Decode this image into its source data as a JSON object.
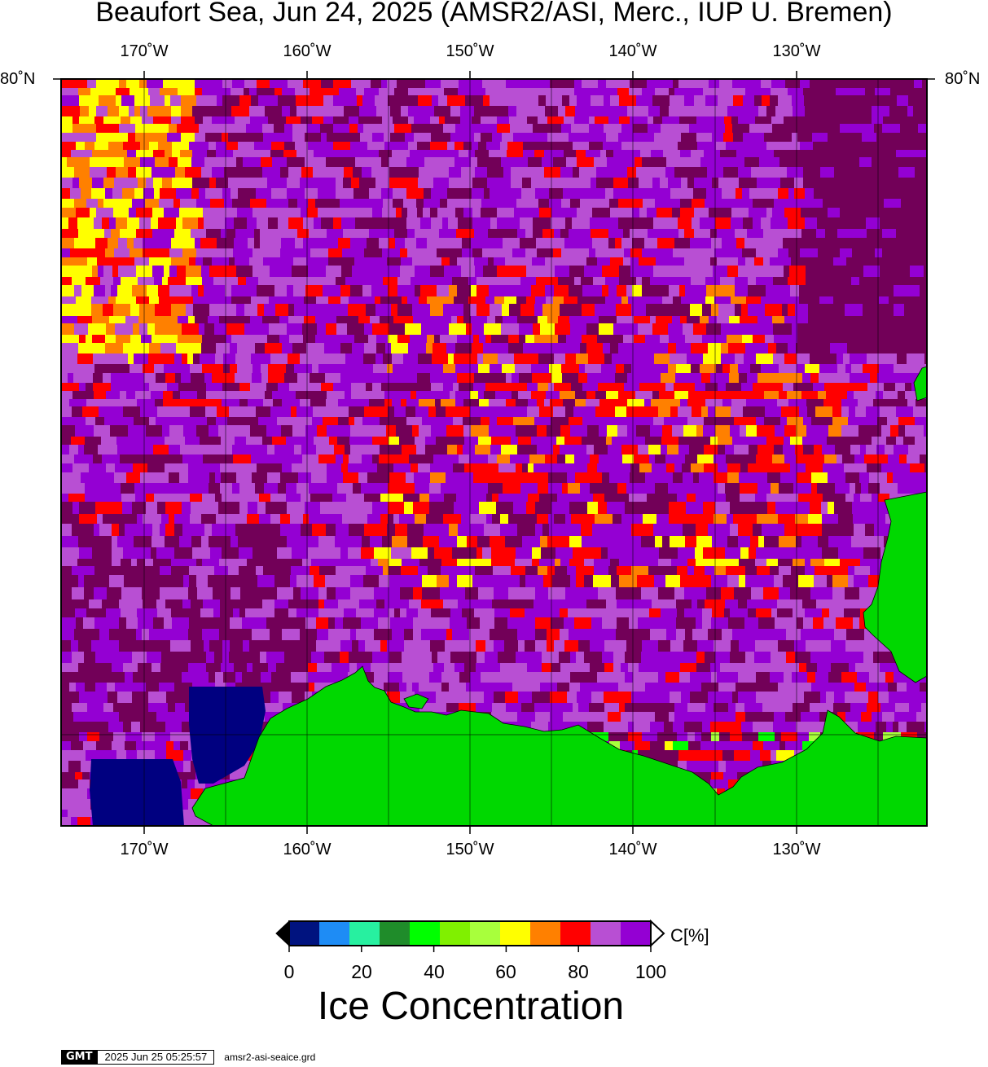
{
  "title": "Beaufort Sea, Jun 24, 2025 (AMSR2/ASI, Merc., IUP U. Bremen)",
  "lon_labels": [
    "170˚W",
    "160˚W",
    "150˚W",
    "140˚W",
    "130˚W"
  ],
  "lat_label_left": "80˚N",
  "lat_label_right": "80˚N",
  "colorbar": {
    "unit": "C[%]",
    "ticks": [
      "0",
      "20",
      "40",
      "60",
      "80",
      "100"
    ],
    "title": "Ice Concentration",
    "colors": [
      "#00137f",
      "#1e8cf5",
      "#27f0a0",
      "#1f8c2a",
      "#00ff00",
      "#80f000",
      "#a8ff3c",
      "#ffff00",
      "#ff8000",
      "#ff0000",
      "#b84fd3",
      "#9400d3"
    ],
    "land_color": "#00d800",
    "open_water_color": "#000080",
    "max_ice_color": "#720058"
  },
  "footer": {
    "logo": "GMT",
    "timestamp": "2025 Jun 25 05:25:57",
    "filename": "amsr2-asi-seaice.grd"
  }
}
